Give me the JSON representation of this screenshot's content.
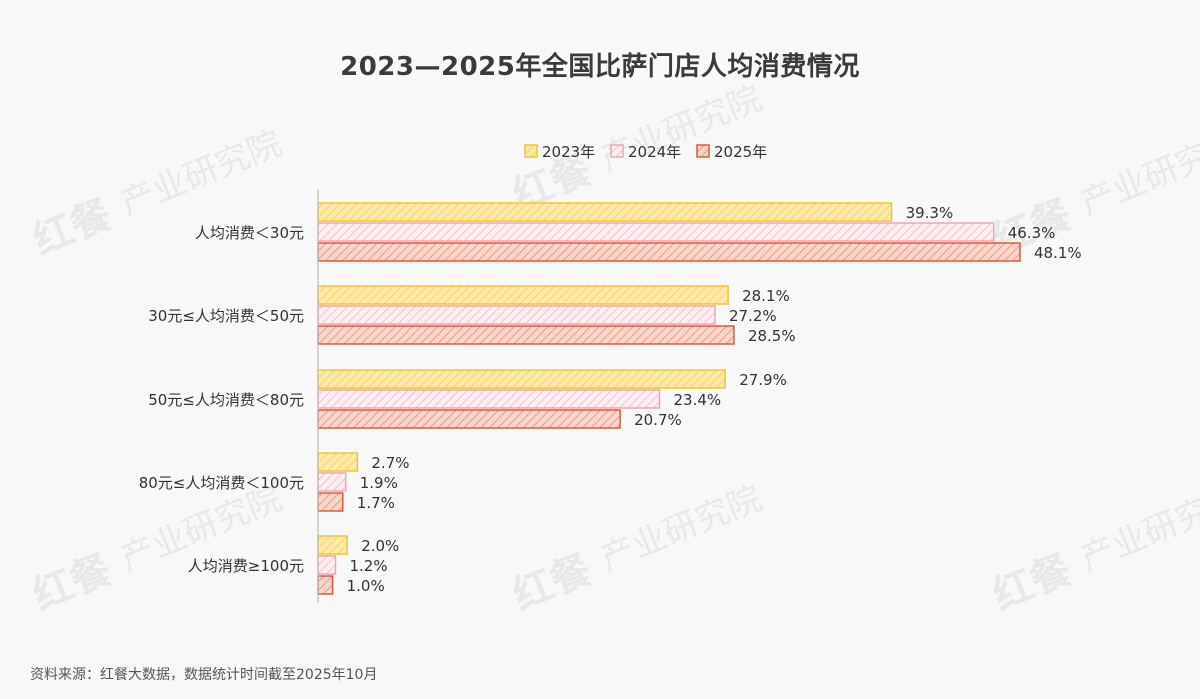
{
  "title": "2023—2025年全国比萨门店人均消费情况",
  "source": "资料来源：红餐大数据，数据统计时间截至2025年10月",
  "watermark": {
    "logo": "红餐",
    "text": "产业研究院"
  },
  "colors": {
    "s2023_fill": "#fde9a8",
    "s2023_stroke": "#f3c324",
    "s2024_fill": "#fbe3e8",
    "s2024_stroke": "#e9a2b0",
    "s2025_fill": "#f6c3b5",
    "s2025_stroke": "#e0512e",
    "axis": "#bdbdbd"
  },
  "chart_data": {
    "type": "bar",
    "orientation": "horizontal",
    "title": "2023—2025年全国比萨门店人均消费情况",
    "categories": [
      "人均消费＜30元",
      "30元≤人均消费＜50元",
      "50元≤人均消费＜80元",
      "80元≤人均消费＜100元",
      "人均消费≥100元"
    ],
    "series": [
      {
        "name": "2023年",
        "values": [
          39.3,
          28.1,
          27.9,
          2.7,
          2.0
        ],
        "labels": [
          "39.3%",
          "28.1%",
          "27.9%",
          "2.7%",
          "2.0%"
        ]
      },
      {
        "name": "2024年",
        "values": [
          46.3,
          27.2,
          23.4,
          1.9,
          1.2
        ],
        "labels": [
          "46.3%",
          "27.2%",
          "23.4%",
          "1.9%",
          "1.2%"
        ]
      },
      {
        "name": "2025年",
        "values": [
          48.1,
          28.5,
          20.7,
          1.7,
          1.0
        ],
        "labels": [
          "48.1%",
          "28.5%",
          "20.7%",
          "1.7%",
          "1.0%"
        ]
      }
    ],
    "unit": "%",
    "xlim": [
      0,
      50
    ],
    "grid": false,
    "legend_position": "top"
  }
}
